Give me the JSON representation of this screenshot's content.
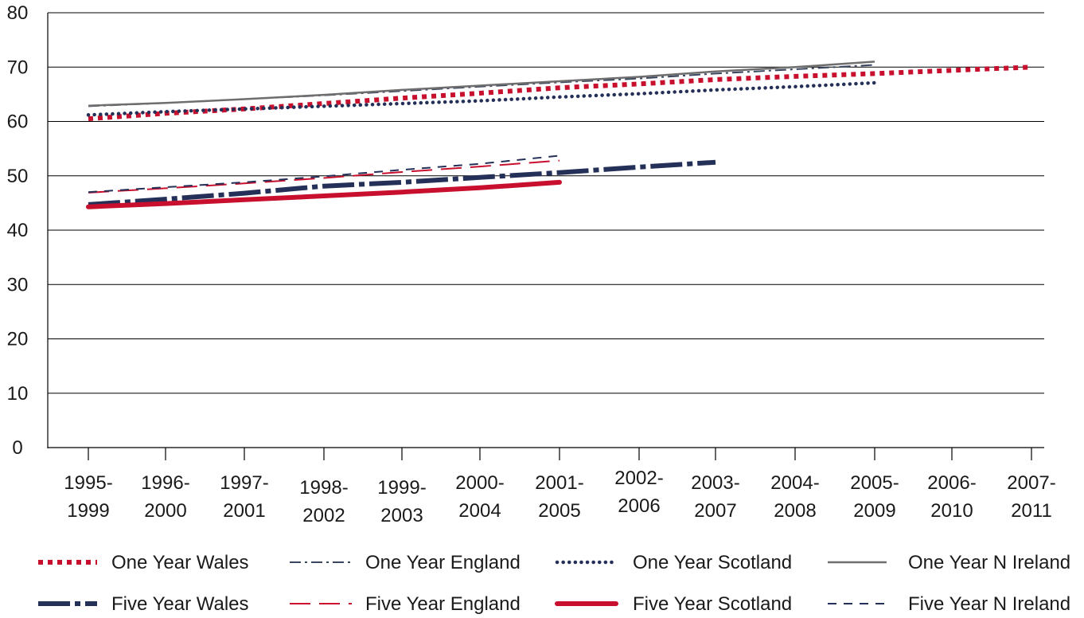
{
  "chart_data": {
    "type": "line",
    "title": "",
    "xlabel": "",
    "ylabel": "",
    "ylim": [
      0,
      80
    ],
    "y_ticks": [
      "0",
      "10",
      "20",
      "30",
      "40",
      "50",
      "60",
      "70",
      "80"
    ],
    "grid": "horizontal",
    "legend_position": "bottom",
    "categories": [
      [
        "1995-",
        "1999"
      ],
      [
        "1996-",
        "2000"
      ],
      [
        "1997-",
        "2001"
      ],
      [
        "1998-",
        "2002"
      ],
      [
        "1999-",
        "2003"
      ],
      [
        "2000-",
        "2004"
      ],
      [
        "2001-",
        "2005"
      ],
      [
        "2002-",
        "2006"
      ],
      [
        "2003-",
        "2007"
      ],
      [
        "2004-",
        "2008"
      ],
      [
        "2005-",
        "2009"
      ],
      [
        "2006-",
        "2010"
      ],
      [
        "2007-",
        "2011"
      ]
    ],
    "series": [
      {
        "name": "One Year Wales",
        "color": "#c8102e",
        "style": "dotted-thick",
        "values": [
          60.5,
          61.5,
          62.3,
          63.3,
          64.3,
          65.2,
          66.2,
          66.9,
          67.7,
          68.3,
          68.8,
          69.4,
          70.0
        ]
      },
      {
        "name": "One Year England",
        "color": "#3a4660",
        "style": "dash-dot-thin",
        "values": [
          62.8,
          63.4,
          64.1,
          64.8,
          65.6,
          66.4,
          67.2,
          67.9,
          68.8,
          69.6,
          70.4,
          null,
          null
        ]
      },
      {
        "name": "One Year Scotland",
        "color": "#243057",
        "style": "dotted",
        "values": [
          61.2,
          61.8,
          62.3,
          62.8,
          63.3,
          63.8,
          64.5,
          65.1,
          65.8,
          66.4,
          67.1,
          null,
          null
        ]
      },
      {
        "name": "One Year N Ireland",
        "color": "#6e6e6e",
        "style": "solid",
        "values": [
          62.9,
          63.4,
          64.1,
          64.9,
          65.8,
          66.6,
          67.4,
          68.2,
          69.2,
          70.0,
          71.0,
          null,
          null
        ]
      },
      {
        "name": "Five Year Wales",
        "color": "#243057",
        "style": "long-dash-dot-thick",
        "values": [
          44.7,
          45.7,
          46.8,
          48.1,
          48.8,
          49.7,
          50.6,
          51.6,
          52.5,
          null,
          null,
          null,
          null
        ]
      },
      {
        "name": "Five Year England",
        "color": "#c8102e",
        "style": "long-dash",
        "values": [
          46.9,
          47.7,
          48.6,
          49.6,
          50.7,
          51.7,
          52.8,
          null,
          null,
          null,
          null,
          null,
          null
        ]
      },
      {
        "name": "Five Year Scotland",
        "color": "#c8102e",
        "style": "solid-thick",
        "values": [
          44.3,
          44.9,
          45.6,
          46.3,
          47.0,
          47.8,
          48.8,
          null,
          null,
          null,
          null,
          null,
          null
        ]
      },
      {
        "name": "Five Year N Ireland",
        "color": "#243057",
        "style": "dashed",
        "values": [
          47.0,
          47.9,
          48.8,
          49.9,
          51.1,
          52.2,
          53.7,
          null,
          null,
          null,
          null,
          null,
          null
        ]
      }
    ]
  }
}
